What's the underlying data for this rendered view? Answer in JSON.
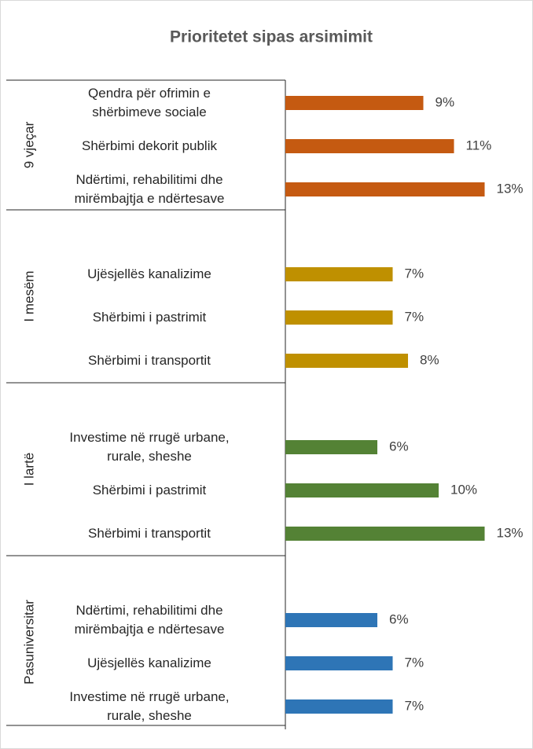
{
  "chart_data": {
    "type": "bar",
    "orientation": "horizontal",
    "title": "Prioritetet sipas arsimimit",
    "groups": [
      {
        "name": "9 vjeçar",
        "color": "#c55a11",
        "categories": [
          "Qendra për ofrimin e\nshërbimeve sociale",
          "Shërbimi dekorit publik",
          "Ndërtimi, rehabilitimi dhe\nmirëmbajtja e ndërtesave"
        ],
        "values": [
          9,
          11,
          13
        ],
        "value_labels": [
          "9%",
          "11%",
          "13%"
        ]
      },
      {
        "name": "I mesëm",
        "color": "#bf9000",
        "categories": [
          "Ujësjellës kanalizime",
          "Shërbimi i pastrimit",
          "Shërbimi i transportit"
        ],
        "values": [
          7,
          7,
          8
        ],
        "value_labels": [
          "7%",
          "7%",
          "8%"
        ]
      },
      {
        "name": "I lartë",
        "color": "#548235",
        "categories": [
          "Investime në rrugë urbane,\nrurale, sheshe",
          "Shërbimi i pastrimit",
          "Shërbimi i transportit"
        ],
        "values": [
          6,
          10,
          13
        ],
        "value_labels": [
          "6%",
          "10%",
          "13%"
        ]
      },
      {
        "name": "Pasuniversitar",
        "color": "#2e75b6",
        "categories": [
          "Ndërtimi, rehabilitimi dhe\nmirëmbajtja e ndërtesave",
          "Ujësjellës kanalizime",
          "Investime në rrugë urbane,\nrurale, sheshe"
        ],
        "values": [
          6,
          7,
          7
        ],
        "value_labels": [
          "6%",
          "7%",
          "7%"
        ]
      }
    ]
  }
}
